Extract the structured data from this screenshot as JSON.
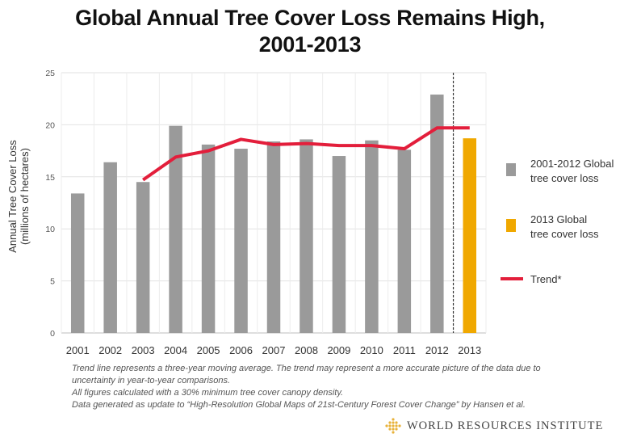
{
  "chart_data": {
    "type": "bar",
    "title_lines": [
      "Global Annual Tree Cover Loss Remains High,",
      "2001-2013"
    ],
    "ylabel_lines": [
      "Annual Tree Cover Loss",
      "(millions of hectares)"
    ],
    "xlabel": "",
    "ylim": [
      0,
      25
    ],
    "yticks": [
      "0",
      "5",
      "10",
      "15",
      "20",
      "25"
    ],
    "grid": true,
    "categories": [
      "2001",
      "2002",
      "2003",
      "2004",
      "2005",
      "2006",
      "2007",
      "2008",
      "2009",
      "2010",
      "2011",
      "2012",
      "2013"
    ],
    "series": [
      {
        "name": "2001-2012 Global tree cover loss",
        "legend_lines": [
          "2001-2012 Global",
          "tree cover loss"
        ],
        "color": "#9a9a9a",
        "type": "bar",
        "values": [
          13.4,
          16.4,
          14.5,
          19.9,
          18.1,
          17.7,
          18.4,
          18.6,
          17.0,
          18.5,
          17.6,
          22.9,
          null
        ]
      },
      {
        "name": "2013 Global tree cover loss",
        "legend_lines": [
          "2013 Global",
          "tree cover loss"
        ],
        "color": "#f0a800",
        "type": "bar",
        "values": [
          null,
          null,
          null,
          null,
          null,
          null,
          null,
          null,
          null,
          null,
          null,
          null,
          18.7
        ]
      },
      {
        "name": "Trend*",
        "legend_lines": [
          "Trend*"
        ],
        "color": "#e31e3b",
        "type": "line",
        "values": [
          null,
          null,
          14.7,
          16.9,
          17.5,
          18.6,
          18.1,
          18.2,
          18.0,
          18.0,
          17.7,
          19.7,
          19.7
        ]
      }
    ],
    "divider_between": [
      "2012",
      "2013"
    ],
    "legend_position": "right"
  },
  "notes": [
    "Trend line represents a three-year moving average. The trend may represent a more accurate picture of the data due to uncertainty in year-to-year comparisons.",
    "All figures calculated with a 30%  minimum tree cover canopy density.",
    "Data generated as update to “High-Resolution Global Maps of 21st-Century Forest Cover Change” by Hansen et al."
  ],
  "logo": {
    "text": "WORLD RESOURCES INSTITUTE",
    "icon": "wri-logo-icon",
    "color": "#e8b23a"
  }
}
